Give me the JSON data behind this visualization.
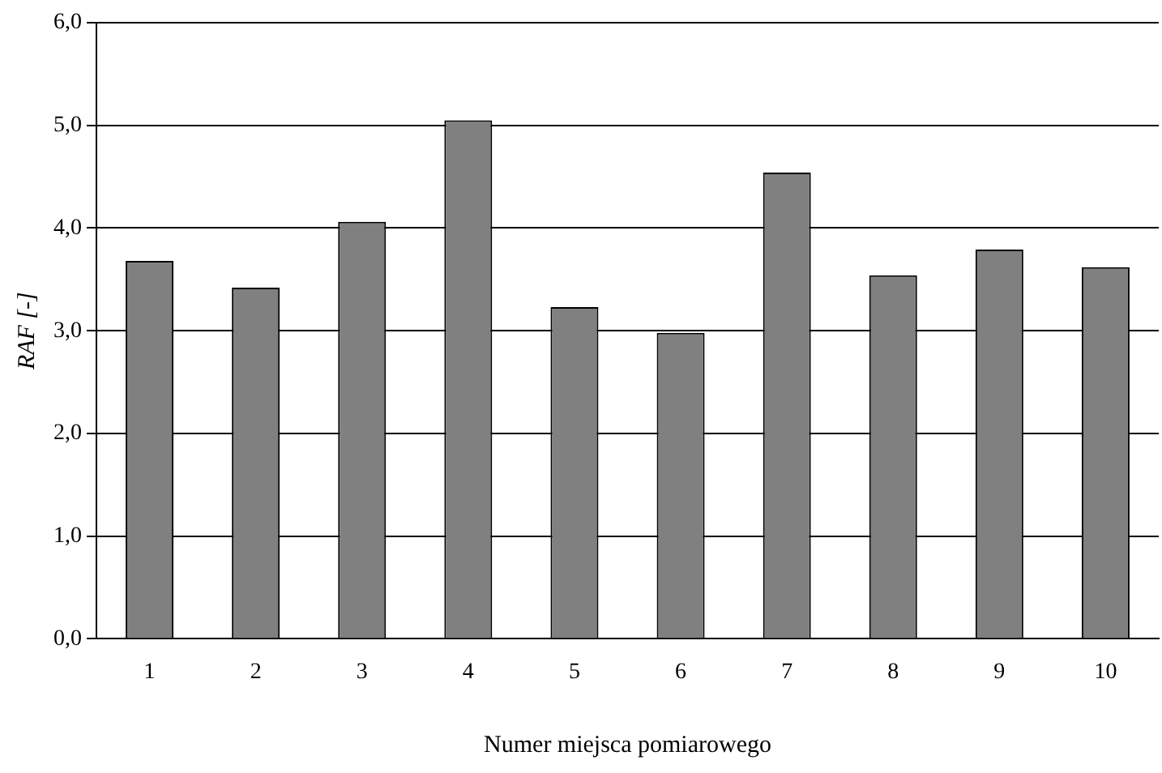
{
  "chart_data": {
    "type": "bar",
    "xlabel": "Numer miejsca pomiarowego",
    "ylabel": "RAF [-]",
    "categories": [
      "1",
      "2",
      "3",
      "4",
      "5",
      "6",
      "7",
      "8",
      "9",
      "10"
    ],
    "values": [
      3.68,
      3.42,
      4.06,
      5.05,
      3.23,
      2.98,
      4.54,
      3.54,
      3.79,
      3.62
    ],
    "color": "#808080",
    "ylim": [
      0,
      6
    ],
    "yticks": [
      {
        "value": 0,
        "label": "0,0"
      },
      {
        "value": 1,
        "label": "1,0"
      },
      {
        "value": 2,
        "label": "2,0"
      },
      {
        "value": 3,
        "label": "3,0"
      },
      {
        "value": 4,
        "label": "4,0"
      },
      {
        "value": 5,
        "label": "5,0"
      },
      {
        "value": 6,
        "label": "6,0"
      }
    ],
    "grid": "y",
    "legend": false
  }
}
